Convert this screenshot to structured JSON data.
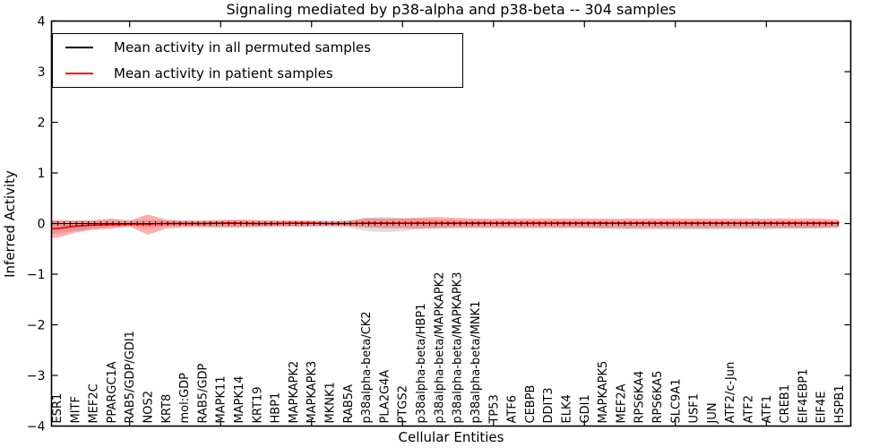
{
  "title": "Signaling mediated by p38-alpha and p38-beta -- 304 samples",
  "axes": {
    "ylabel": "Inferred Activity",
    "xlabel": "Cellular Entities",
    "ylim": [
      -4,
      4
    ],
    "yticks": [
      -4,
      -3,
      -2,
      -1,
      0,
      1,
      2,
      3,
      4
    ]
  },
  "legend": {
    "items": [
      {
        "label": "Mean activity in all permuted samples",
        "color": "#000000"
      },
      {
        "label": "Mean activity in patient samples",
        "color": "#ff0000"
      }
    ]
  },
  "chart_data": {
    "type": "line",
    "title": "Signaling mediated by p38-alpha and p38-beta -- 304 samples",
    "xlabel": "Cellular Entities",
    "ylabel": "Inferred Activity",
    "ylim": [
      -4,
      4
    ],
    "grid": false,
    "legend_position": "upper left",
    "categories": [
      "ESR1",
      "MITF",
      "MEF2C",
      "PPARGC1A",
      "RAB5/GDP/GDI1",
      "NOS2",
      "KRT8",
      "mol:GDP",
      "RAB5/GDP",
      "MAPK11",
      "MAPK14",
      "KRT19",
      "HBP1",
      "MAPKAPK2",
      "MAPKAPK3",
      "MKNK1",
      "RAB5A",
      "p38alpha-beta/CK2",
      "PLA2G4A",
      "PTGS2",
      "p38alpha-beta/HBP1",
      "p38alpha-beta/MAPKAPK2",
      "p38alpha-beta/MAPKAPK3",
      "p38alpha-beta/MNK1",
      "TP53",
      "ATF6",
      "CEBPB",
      "DDIT3",
      "ELK4",
      "GDI1",
      "MAPKAPK5",
      "MEF2A",
      "RPS6KA4",
      "RPS6KA5",
      "SLC9A1",
      "USF1",
      "JUN",
      "ATF2/c-Jun",
      "ATF2",
      "ATF1",
      "CREB1",
      "EIF4EBP1",
      "EIF4E",
      "HSPB1"
    ],
    "series": [
      {
        "name": "Mean activity in all permuted samples",
        "color": "#000000",
        "band_color": "#999999",
        "values": [
          0,
          0,
          0,
          0,
          0,
          0,
          0,
          0,
          0,
          0,
          0,
          0,
          0,
          0,
          0,
          0,
          0,
          0,
          0,
          0,
          0,
          0,
          0,
          0,
          0,
          0,
          0,
          0,
          0,
          0,
          0,
          0,
          0,
          0,
          0,
          0,
          0,
          0,
          0,
          0,
          0,
          0,
          0,
          0
        ],
        "band_upper": [
          0.05,
          0.05,
          0.05,
          0.06,
          0.05,
          0.08,
          0.06,
          0.05,
          0.05,
          0.06,
          0.06,
          0.05,
          0.05,
          0.06,
          0.07,
          0.07,
          0.07,
          0.12,
          0.13,
          0.11,
          0.09,
          0.08,
          0.07,
          0.07,
          0.06,
          0.06,
          0.06,
          0.06,
          0.06,
          0.06,
          0.06,
          0.06,
          0.06,
          0.06,
          0.06,
          0.06,
          0.06,
          0.06,
          0.06,
          0.06,
          0.06,
          0.05,
          0.05,
          0.05
        ],
        "band_lower": [
          -0.2,
          -0.15,
          -0.1,
          -0.07,
          -0.05,
          -0.08,
          -0.06,
          -0.05,
          -0.05,
          -0.06,
          -0.06,
          -0.05,
          -0.05,
          -0.06,
          -0.07,
          -0.08,
          -0.08,
          -0.15,
          -0.17,
          -0.15,
          -0.1,
          -0.08,
          -0.07,
          -0.07,
          -0.07,
          -0.07,
          -0.07,
          -0.07,
          -0.07,
          -0.08,
          -0.1,
          -0.11,
          -0.12,
          -0.12,
          -0.12,
          -0.12,
          -0.12,
          -0.11,
          -0.11,
          -0.11,
          -0.1,
          -0.1,
          -0.09,
          -0.09
        ]
      },
      {
        "name": "Mean activity in patient samples",
        "color": "#ff0000",
        "band_color": "#ff0000",
        "values": [
          -0.1,
          -0.05,
          -0.03,
          -0.02,
          -0.01,
          -0.01,
          0.0,
          0.0,
          0.0,
          0.01,
          0.01,
          0.0,
          0.0,
          0.01,
          0.01,
          0.0,
          0.0,
          0.01,
          0.01,
          0.01,
          0.01,
          0.01,
          0.01,
          0.01,
          0.01,
          0.01,
          0.01,
          0.01,
          0.01,
          0.01,
          0.01,
          0.01,
          0.01,
          0.01,
          0.01,
          0.01,
          0.01,
          0.01,
          0.01,
          0.01,
          0.01,
          0.01,
          0.01,
          0.01
        ],
        "band_upper": [
          0.07,
          0.06,
          0.07,
          0.1,
          0.06,
          0.18,
          0.08,
          0.06,
          0.06,
          0.07,
          0.08,
          0.07,
          0.06,
          0.06,
          0.05,
          0.04,
          0.05,
          0.1,
          0.1,
          0.1,
          0.12,
          0.13,
          0.11,
          0.1,
          0.1,
          0.1,
          0.1,
          0.1,
          0.1,
          0.1,
          0.1,
          0.1,
          0.1,
          0.1,
          0.1,
          0.1,
          0.1,
          0.1,
          0.1,
          0.1,
          0.1,
          0.1,
          0.1,
          0.08
        ],
        "band_lower": [
          -0.28,
          -0.18,
          -0.12,
          -0.1,
          -0.06,
          -0.22,
          -0.1,
          -0.07,
          -0.07,
          -0.08,
          -0.08,
          -0.07,
          -0.06,
          -0.06,
          -0.05,
          -0.04,
          -0.05,
          -0.08,
          -0.09,
          -0.09,
          -0.1,
          -0.1,
          -0.09,
          -0.09,
          -0.09,
          -0.09,
          -0.09,
          -0.09,
          -0.09,
          -0.09,
          -0.09,
          -0.09,
          -0.09,
          -0.09,
          -0.09,
          -0.09,
          -0.09,
          -0.09,
          -0.09,
          -0.09,
          -0.09,
          -0.09,
          -0.09,
          -0.07
        ]
      }
    ]
  }
}
